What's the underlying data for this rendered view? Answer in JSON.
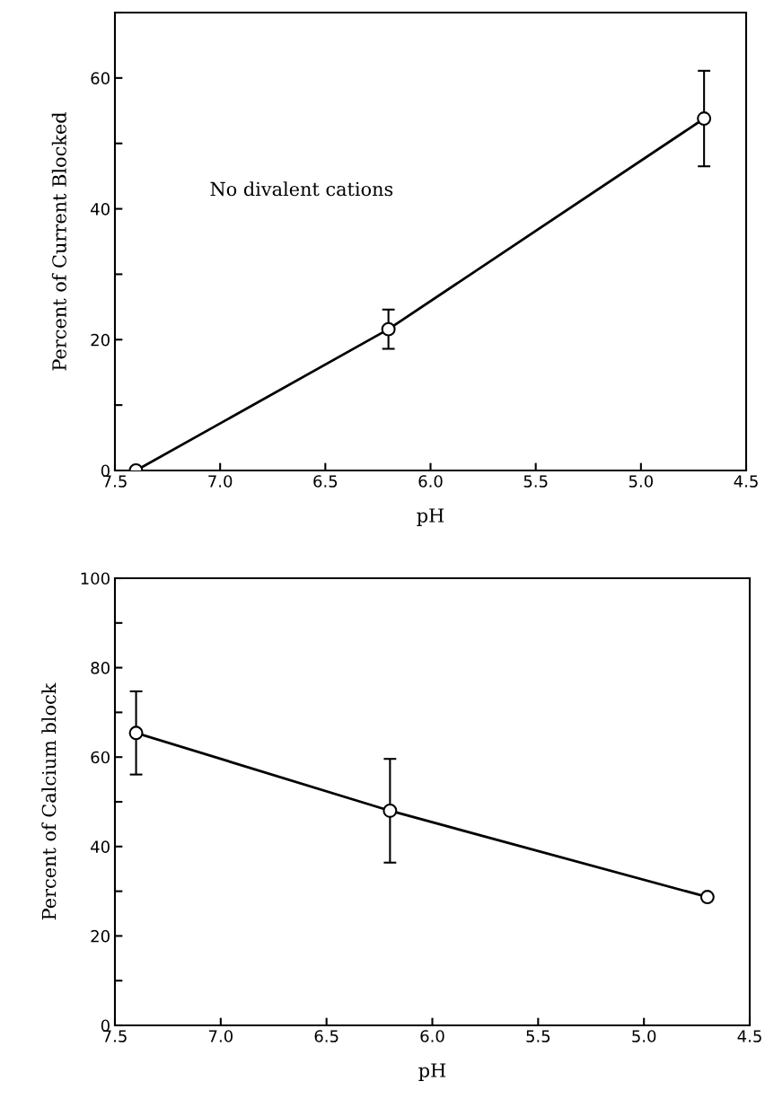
{
  "chart_data": [
    {
      "type": "line",
      "xlabel": "pH",
      "ylabel": "Percent of Current Blocked",
      "x": [
        7.4,
        6.2,
        4.7
      ],
      "series": [
        {
          "color": "#000000",
          "values": [
            0,
            21.6,
            53.8
          ],
          "errors": [
            null,
            3,
            7.3
          ]
        }
      ],
      "xlim": [
        7.5,
        4.5
      ],
      "xticks": [
        7.5,
        {
          "value": 7,
          "label": "7.0"
        },
        6.5,
        {
          "value": 6,
          "label": "6.0"
        },
        5.5,
        {
          "value": 5,
          "label": "5.0"
        },
        4.5
      ],
      "ylim": [
        0,
        70
      ],
      "yticks": [
        0,
        {
          "value": 10,
          "label": null
        },
        20,
        {
          "value": 30,
          "label": null
        },
        40,
        {
          "value": 50,
          "label": null
        },
        60,
        {
          "value": 70,
          "label": null
        }
      ],
      "annotations": [
        "No divalent cations"
      ],
      "marker": "circle",
      "line_style": "solid",
      "grid": false,
      "legend": false
    },
    {
      "type": "line",
      "xlabel": "pH",
      "ylabel": "Percent of Calcium block",
      "x": [
        7.4,
        6.2,
        4.7
      ],
      "series": [
        {
          "color": "#000000",
          "values": [
            65.4,
            48.0,
            28.7
          ],
          "errors": [
            9.3,
            11.6,
            null
          ]
        }
      ],
      "xlim": [
        7.5,
        4.5
      ],
      "xticks": [
        7.5,
        {
          "value": 7,
          "label": "7.0"
        },
        6.5,
        {
          "value": 6,
          "label": "6.0"
        },
        5.5,
        {
          "value": 5,
          "label": "5.0"
        },
        4.5
      ],
      "ylim": [
        0,
        100
      ],
      "yticks": [
        0,
        {
          "value": 10,
          "label": null
        },
        20,
        {
          "value": 30,
          "label": null
        },
        40,
        {
          "value": 50,
          "label": null
        },
        60,
        {
          "value": 70,
          "label": null
        },
        80,
        {
          "value": 90,
          "label": null
        },
        100
      ],
      "marker": "circle",
      "line_style": "solid",
      "grid": false,
      "legend": false
    }
  ]
}
